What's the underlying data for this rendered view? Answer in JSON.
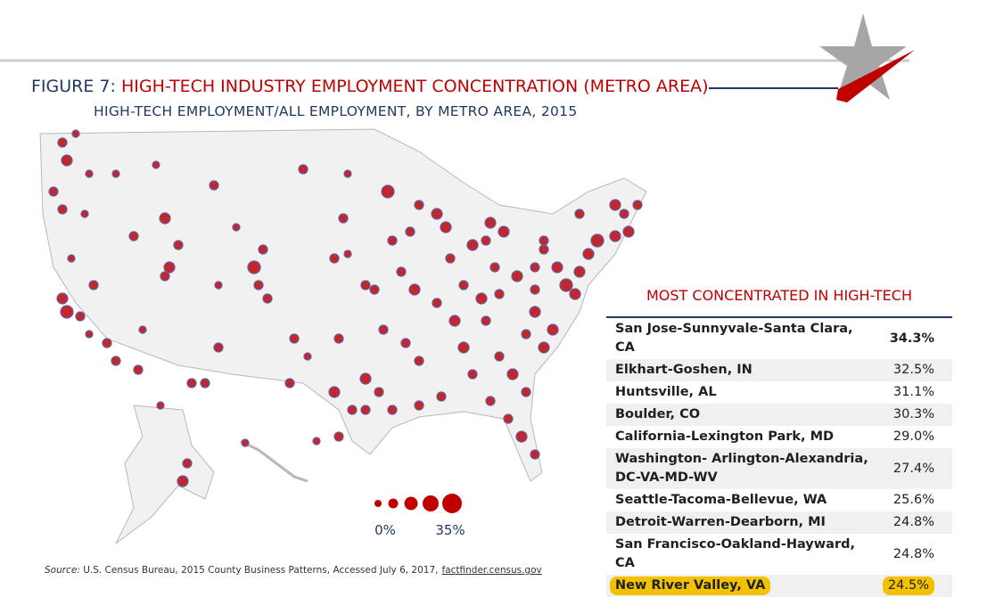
{
  "header": {
    "figure_label": "FIGURE 7:",
    "title": "HIGH-TECH INDUSTRY EMPLOYMENT CONCENTRATION (METRO AREA)",
    "subtitle": "HIGH-TECH EMPLOYMENT/ALL EMPLOYMENT, BY METRO AREA, 2015"
  },
  "legend": {
    "min_label": "0%",
    "max_label": "35%"
  },
  "table": {
    "title": "MOST CONCENTRATED IN HIGH-TECH",
    "rows": [
      [
        "San Jose-Sunnyvale-Santa Clara, CA",
        "34.3%"
      ],
      [
        "Elkhart-Goshen, IN",
        "32.5%"
      ],
      [
        "Huntsville, AL",
        "31.1%"
      ],
      [
        "Boulder, CO",
        "30.3%"
      ],
      [
        "California-Lexington Park, MD",
        "29.0%"
      ],
      [
        "Washington- Arlington-Alexandria, DC-VA-MD-WV",
        "27.4%"
      ],
      [
        "Seattle-Tacoma-Bellevue, WA",
        "25.6%"
      ],
      [
        "Detroit-Warren-Dearborn, MI",
        "24.8%"
      ],
      [
        "San Francisco-Oakland-Hayward, CA",
        "24.8%"
      ],
      [
        "New River Valley, VA",
        "24.5%"
      ]
    ]
  },
  "source": {
    "label": "Source:",
    "text": "U.S. Census Bureau, 2015 County Business Patterns, Accessed July 6, 2017,",
    "link": "factfinder.census.gov"
  }
}
